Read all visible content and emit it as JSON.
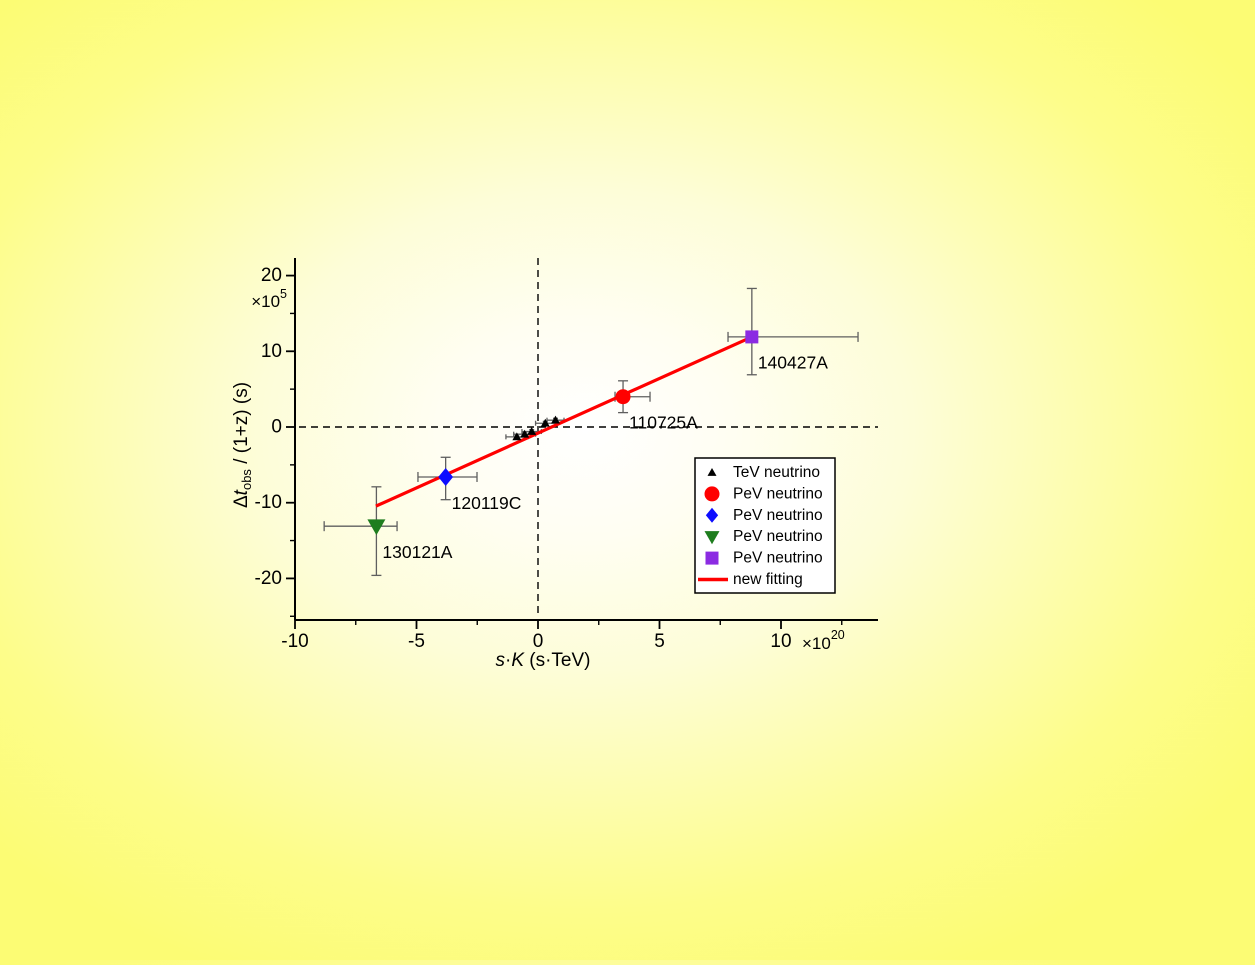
{
  "figure": {
    "kind": "scientific scatter plot with error bars",
    "background_edge_color": "#fcfc74",
    "background_center_color": "#ffffff",
    "axis_color": "#000000",
    "error_bar_color": "#5f5f5f"
  },
  "chart_data": {
    "type": "scatter",
    "title": "",
    "xlabel_plain": "s·K (s·TeV)",
    "xlabel_parts": [
      {
        "t": "s",
        "style": "italic"
      },
      {
        "t": "·"
      },
      {
        "t": "K",
        "style": "italic"
      },
      {
        "t": " (s·TeV)"
      }
    ],
    "x_unit_multiplier": {
      "mantissa": "×10",
      "exponent": "20"
    },
    "ylabel_plain": "Δt_obs / (1+z)  (s)",
    "ylabel_parts": [
      {
        "t": "Δ"
      },
      {
        "t": "t",
        "style": "italic"
      },
      {
        "t": "obs",
        "script": "sub"
      },
      {
        "t": " / (1+z)  (s)"
      }
    ],
    "y_unit_multiplier": {
      "mantissa": "×10",
      "exponent": "5"
    },
    "xlim": [
      -10,
      14.1
    ],
    "ylim": [
      -25.6,
      22.3
    ],
    "x_major_ticks": [
      -10,
      -5,
      0,
      5,
      10
    ],
    "x_minor_ticks": [
      -7.5,
      -2.5,
      2.5,
      7.5,
      12.5
    ],
    "y_major_ticks": [
      20,
      10,
      0,
      -10,
      -20
    ],
    "y_minor_ticks": [
      15,
      5,
      -5,
      -15,
      -25
    ],
    "zero_lines": {
      "style": "dashed",
      "color": "#000000",
      "at_x": 0,
      "at_y": 0
    },
    "grid": "off",
    "series": [
      {
        "name": "TeV neutrino",
        "marker": "triangle-up",
        "color": "#000000",
        "size": 4.5,
        "cap": 2.5,
        "points": [
          {
            "x": -0.87,
            "y": -1.3,
            "ex_minus": 0.45,
            "ex_plus": 0.45,
            "ey_minus": 0.25,
            "ey_plus": 0.25
          },
          {
            "x": -0.55,
            "y": -0.95,
            "ex_minus": 0.45,
            "ex_plus": 0.45,
            "ey_minus": 0.25,
            "ey_plus": 0.25
          },
          {
            "x": -0.26,
            "y": -0.6,
            "ex_minus": 0.4,
            "ex_plus": 0.4,
            "ey_minus": 0.25,
            "ey_plus": 0.25
          },
          {
            "x": 0.3,
            "y": 0.5,
            "ex_minus": 0.4,
            "ex_plus": 0.4,
            "ey_minus": 0.25,
            "ey_plus": 0.25
          },
          {
            "x": 0.72,
            "y": 0.9,
            "ex_minus": 0.35,
            "ex_plus": 0.35,
            "ey_minus": 0.25,
            "ey_plus": 0.25
          }
        ]
      },
      {
        "name": "PeV neutrino",
        "marker": "circle",
        "color": "#ff0000",
        "size": 7.5,
        "cap": 5,
        "points": [
          {
            "x": 3.5,
            "y": 4.0,
            "ex_minus": 0.33,
            "ex_plus": 1.11,
            "ey_minus": 2.1,
            "ey_plus": 2.1,
            "label": "110725A"
          }
        ]
      },
      {
        "name": "PeV neutrino",
        "marker": "diamond",
        "color": "#0d0dff",
        "size": 9,
        "cap": 5,
        "points": [
          {
            "x": -3.8,
            "y": -6.6,
            "ex_minus": 1.14,
            "ex_plus": 1.29,
            "ey_minus": 3.0,
            "ey_plus": 2.6,
            "label": "120119C"
          }
        ]
      },
      {
        "name": "PeV neutrino",
        "marker": "triangle-down",
        "color": "#1e7d1e",
        "size": 9,
        "cap": 5,
        "points": [
          {
            "x": -6.65,
            "y": -13.1,
            "ex_minus": 2.15,
            "ex_plus": 0.85,
            "ey_minus": 6.5,
            "ey_plus": 5.2,
            "label": "130121A"
          }
        ]
      },
      {
        "name": "PeV neutrino",
        "marker": "square",
        "color": "#8b2be2",
        "size": 6.5,
        "cap": 5,
        "points": [
          {
            "x": 8.8,
            "y": 11.9,
            "ex_minus": 0.98,
            "ex_plus": 4.37,
            "ey_minus": 5.0,
            "ey_plus": 6.4,
            "label": "140427A"
          }
        ]
      }
    ],
    "fit_line": {
      "label": "new fitting",
      "color": "#ff0000",
      "x_start": -6.67,
      "y_start": -10.45,
      "x_end": 8.8,
      "y_end": 11.9
    },
    "legend": {
      "position": "inside lower right",
      "border_color": "#000000",
      "background": "#ffffff"
    }
  }
}
